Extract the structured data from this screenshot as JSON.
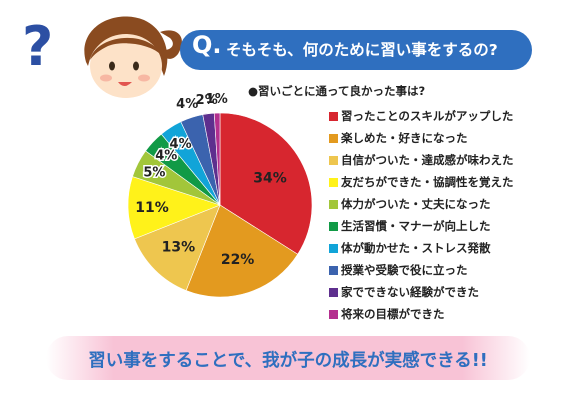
{
  "header": {
    "question_mark": "?",
    "q_letter": "Q.",
    "question": "そもそも、何のために習い事をするの?"
  },
  "icons": {
    "girl": "girl-face-icon",
    "question_mark": "question-mark-icon"
  },
  "chart_data": {
    "type": "pie",
    "title": "●習いごとに通って良かった事は?",
    "start_angle": "12 o'clock",
    "direction": "clockwise",
    "slices": [
      {
        "label": "習ったことのスキルがアップした",
        "value": 34,
        "display": "34%",
        "color": "#d7262f"
      },
      {
        "label": "楽しめた・好きになった",
        "value": 22,
        "display": "22%",
        "color": "#e39a1f"
      },
      {
        "label": "自信がついた・達成感が味わえた",
        "value": 13,
        "display": "13%",
        "color": "#eec64f"
      },
      {
        "label": "友だちができた・協調性を覚えた",
        "value": 11,
        "display": "11%",
        "color": "#fff21a"
      },
      {
        "label": "体力がついた・丈夫になった",
        "value": 5,
        "display": "5%",
        "color": "#a2c63a"
      },
      {
        "label": "生活習慣・マナーが向上した",
        "value": 4,
        "display": "4%",
        "color": "#119a46"
      },
      {
        "label": "体が動かせた・ストレス発散",
        "value": 4,
        "display": "4%",
        "color": "#11a4d8"
      },
      {
        "label": "授業や受験で役に立った",
        "value": 4,
        "display": "4%",
        "color": "#3b63ae"
      },
      {
        "label": "家でできない経験ができた",
        "value": 2,
        "display": "2%",
        "color": "#5e2f8e"
      },
      {
        "label": "将来の目標ができた",
        "value": 1,
        "display": "1%",
        "color": "#b42f8f"
      }
    ]
  },
  "footer": {
    "message": "習い事をすることで、我が子の成長が実感できる!!"
  }
}
